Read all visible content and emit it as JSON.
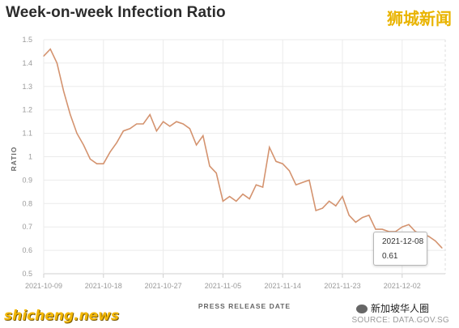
{
  "title": "Week-on-week Infection Ratio",
  "brand_top": "狮城新闻",
  "brand_bottom": "shicheng.news",
  "wechat_label": "新加坡华人圈",
  "source": "SOURCE: DATA.GOV.SG",
  "tooltip": {
    "date": "2021-12-08",
    "value": "0.61"
  },
  "colors": {
    "line": "#d4936f",
    "grid": "#ebebeb",
    "tooltip_border": "#b7b7b7"
  },
  "chart_data": {
    "type": "line",
    "title": "Week-on-week Infection Ratio",
    "xlabel": "PRESS RELEASE DATE",
    "ylabel": "RATIO",
    "ylim": [
      0.5,
      1.5
    ],
    "yticks": [
      0.5,
      0.6,
      0.7,
      0.8,
      0.9,
      1,
      1.1,
      1.2,
      1.3,
      1.4,
      1.5
    ],
    "xticks": [
      "2021-10-09",
      "2021-10-18",
      "2021-10-27",
      "2021-11-05",
      "2021-11-14",
      "2021-11-23",
      "2021-12-02"
    ],
    "grid": true,
    "series": [
      {
        "x": [
          "2021-10-09",
          "2021-10-10",
          "2021-10-11",
          "2021-10-12",
          "2021-10-13",
          "2021-10-14",
          "2021-10-15",
          "2021-10-16",
          "2021-10-17",
          "2021-10-18",
          "2021-10-19",
          "2021-10-20",
          "2021-10-21",
          "2021-10-22",
          "2021-10-23",
          "2021-10-24",
          "2021-10-25",
          "2021-10-26",
          "2021-10-27",
          "2021-10-28",
          "2021-10-29",
          "2021-10-30",
          "2021-10-31",
          "2021-11-01",
          "2021-11-02",
          "2021-11-03",
          "2021-11-04",
          "2021-11-05",
          "2021-11-06",
          "2021-11-07",
          "2021-11-08",
          "2021-11-09",
          "2021-11-10",
          "2021-11-11",
          "2021-11-12",
          "2021-11-13",
          "2021-11-14",
          "2021-11-15",
          "2021-11-16",
          "2021-11-17",
          "2021-11-18",
          "2021-11-19",
          "2021-11-20",
          "2021-11-21",
          "2021-11-22",
          "2021-11-23",
          "2021-11-24",
          "2021-11-25",
          "2021-11-26",
          "2021-11-27",
          "2021-11-28",
          "2021-11-29",
          "2021-11-30",
          "2021-12-01",
          "2021-12-02",
          "2021-12-03",
          "2021-12-04",
          "2021-12-05",
          "2021-12-06",
          "2021-12-07",
          "2021-12-08"
        ],
        "values": [
          1.43,
          1.46,
          1.4,
          1.28,
          1.18,
          1.1,
          1.05,
          0.99,
          0.97,
          0.97,
          1.02,
          1.06,
          1.11,
          1.12,
          1.14,
          1.14,
          1.18,
          1.11,
          1.15,
          1.13,
          1.15,
          1.14,
          1.12,
          1.05,
          1.09,
          0.96,
          0.93,
          0.81,
          0.83,
          0.81,
          0.84,
          0.82,
          0.88,
          0.87,
          1.04,
          0.98,
          0.97,
          0.94,
          0.88,
          0.89,
          0.9,
          0.77,
          0.78,
          0.81,
          0.79,
          0.83,
          0.75,
          0.72,
          0.74,
          0.75,
          0.69,
          0.69,
          0.68,
          0.68,
          0.7,
          0.71,
          0.68,
          0.67,
          0.66,
          0.64,
          0.61
        ]
      }
    ]
  }
}
